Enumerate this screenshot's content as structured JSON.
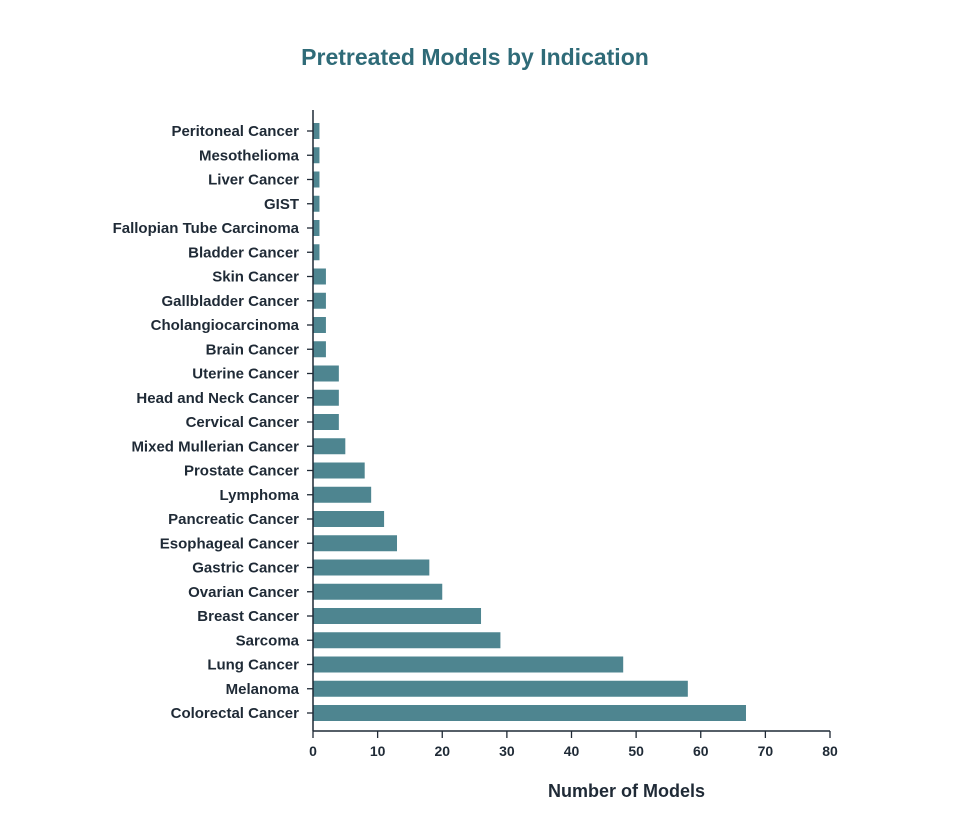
{
  "chart_data": {
    "type": "bar",
    "orientation": "horizontal",
    "title": "Pretreated Models by Indication",
    "xlabel": "Number of Models",
    "ylabel": "",
    "xlim": [
      0,
      80
    ],
    "xticks": [
      0,
      10,
      20,
      30,
      40,
      50,
      60,
      70,
      80
    ],
    "grid": false,
    "bar_color": "#4e8590",
    "title_color": "#2f6b78",
    "categories": [
      "Peritoneal Cancer",
      "Mesothelioma",
      "Liver Cancer",
      "GIST",
      "Fallopian Tube Carcinoma",
      "Bladder Cancer",
      "Skin Cancer",
      "Gallbladder Cancer",
      "Cholangiocarcinoma",
      "Brain Cancer",
      "Uterine Cancer",
      "Head and Neck Cancer",
      "Cervical Cancer",
      "Mixed Mullerian Cancer",
      "Prostate Cancer",
      "Lymphoma",
      "Pancreatic Cancer",
      "Esophageal Cancer",
      "Gastric Cancer",
      "Ovarian Cancer",
      "Breast Cancer",
      "Sarcoma",
      "Lung Cancer",
      "Melanoma",
      "Colorectal Cancer"
    ],
    "values": [
      1,
      1,
      1,
      1,
      1,
      1,
      2,
      2,
      2,
      2,
      4,
      4,
      4,
      5,
      8,
      9,
      11,
      13,
      18,
      20,
      26,
      29,
      48,
      58,
      67
    ]
  }
}
